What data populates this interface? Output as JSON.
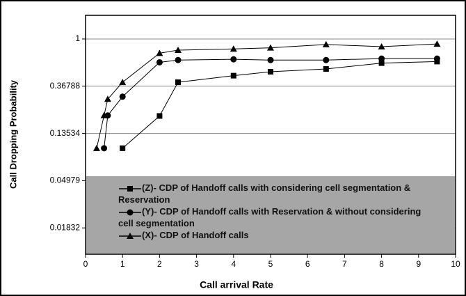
{
  "chart_data": {
    "type": "line",
    "x_label": "Call arrival Rate",
    "y_label": "Call Dropping Probability",
    "xlim": [
      0,
      10
    ],
    "xticks": [
      0,
      1,
      2,
      3,
      4,
      5,
      6,
      7,
      8,
      9,
      10
    ],
    "ylim": [
      0.0105,
      1.65
    ],
    "yticks": [
      0.01832,
      0.04979,
      0.13534,
      0.36788,
      1
    ],
    "log_y": true,
    "grid": true,
    "legend": "bottom",
    "series": [
      {
        "name": "(Z)- CDP of Handoff calls with considering cell segmentation & Reservation",
        "color": "#000000",
        "marker": "square",
        "x": [
          1,
          2,
          2.5,
          4,
          5,
          6.5,
          8,
          9.5
        ],
        "values": [
          0.099,
          0.196,
          0.4,
          0.46,
          0.5,
          0.53,
          0.6,
          0.62
        ]
      },
      {
        "name": "(Y)- CDP of Handoff calls with Reservation & without considering cell segmentation",
        "color": "#000000",
        "marker": "circle",
        "x": [
          0.5,
          0.6,
          1,
          2,
          2.5,
          4,
          5,
          6.5,
          8,
          9.5
        ],
        "values": [
          0.099,
          0.198,
          0.295,
          0.61,
          0.64,
          0.65,
          0.64,
          0.64,
          0.66,
          0.66
        ]
      },
      {
        "name": "(X)- CDP of Handoff calls",
        "color": "#000000",
        "marker": "triangle",
        "x": [
          0.3,
          0.5,
          0.6,
          1,
          2,
          2.5,
          4,
          5,
          6.5,
          8,
          9.5
        ],
        "values": [
          0.099,
          0.198,
          0.28,
          0.4,
          0.74,
          0.79,
          0.81,
          0.83,
          0.89,
          0.85,
          0.9
        ]
      }
    ]
  }
}
